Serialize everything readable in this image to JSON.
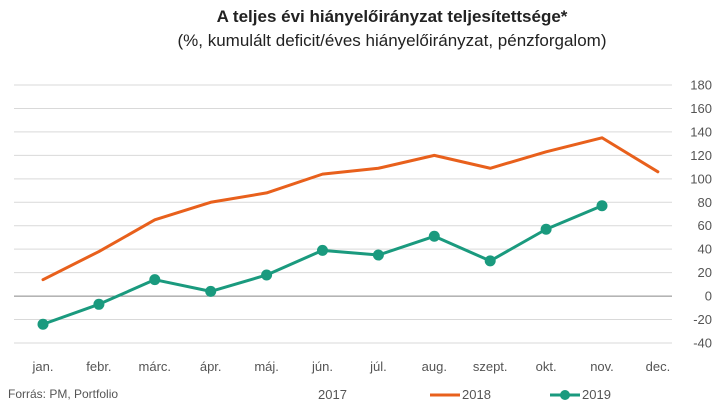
{
  "chart_data": {
    "type": "line",
    "title": "A teljes évi hiányelőirányzat teljesítettsége*",
    "subtitle": "(%, kumulált deficit/éves hiányelőirányzat, pénzforgalom)",
    "categories": [
      "jan.",
      "febr.",
      "márc.",
      "ápr.",
      "máj.",
      "jún.",
      "júl.",
      "aug.",
      "szept.",
      "okt.",
      "nov.",
      "dec."
    ],
    "series": [
      {
        "name": "2017",
        "color": "#4a7fc1",
        "values": [
          null,
          null,
          null,
          null,
          null,
          null,
          null,
          null,
          null,
          null,
          null,
          null
        ]
      },
      {
        "name": "2018",
        "color": "#e8601c",
        "values": [
          14,
          38,
          65,
          80,
          88,
          104,
          109,
          120,
          109,
          123,
          135,
          106
        ]
      },
      {
        "name": "2019",
        "color": "#1a9a7e",
        "markers": true,
        "values": [
          -24,
          -7,
          14,
          4,
          18,
          39,
          35,
          51,
          30,
          57,
          77,
          null
        ]
      }
    ],
    "y_ticks": [
      "180",
      "160",
      "140",
      "120",
      "100",
      "80",
      "60",
      "40",
      "20",
      "0",
      "-20",
      "-40"
    ],
    "ylim": [
      -40,
      180
    ],
    "grid": true,
    "y_axis_side": "right",
    "legend_position": "bottom"
  },
  "source": "Forrás: PM, Portfolio"
}
